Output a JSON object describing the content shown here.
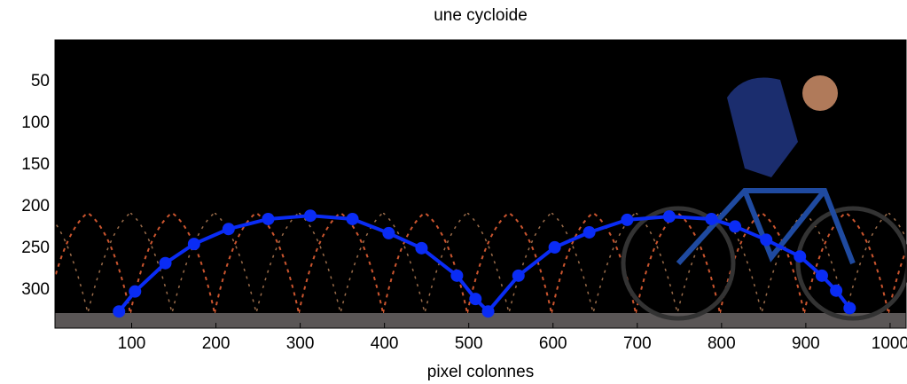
{
  "chart_data": {
    "type": "line",
    "title": "une cycloide",
    "x_label": "pixel colonnes",
    "x": [
      85,
      104,
      140,
      174,
      215,
      262,
      312,
      362,
      405,
      444,
      486,
      508,
      523,
      559,
      602,
      643,
      688,
      738,
      788,
      816,
      853,
      893,
      919,
      936,
      952
    ],
    "series": [
      {
        "color": "#0a2cf5",
        "values": [
          326,
          302,
          268,
          245,
          227,
          215,
          211,
          215,
          232,
          250,
          283,
          311,
          326,
          283,
          249,
          231,
          216,
          212,
          215,
          224,
          240,
          260,
          283,
          301,
          322
        ]
      }
    ],
    "xlim": [
      9,
      1019
    ],
    "xticks": [
      100,
      200,
      300,
      400,
      500,
      600,
      700,
      800,
      900,
      1000
    ],
    "ylim": [
      0,
      346
    ],
    "yticks": [
      50,
      100,
      150,
      200,
      250,
      300
    ],
    "y_inverted": true
  }
}
